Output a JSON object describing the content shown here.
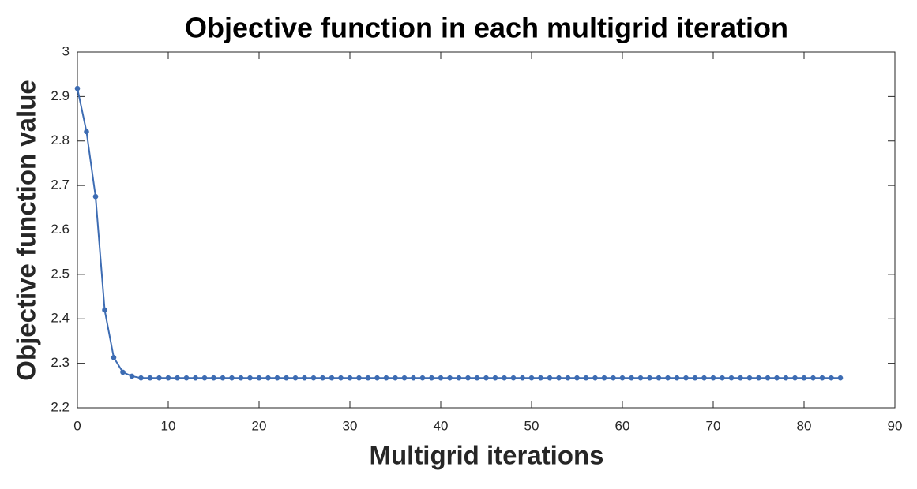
{
  "chart_data": {
    "type": "line",
    "title": "Objective function in each multigrid iteration",
    "xlabel": "Multigrid iterations",
    "ylabel": "Objective function value",
    "x": [
      0,
      1,
      2,
      3,
      4,
      5,
      6,
      7,
      8,
      9,
      10,
      11,
      12,
      13,
      14,
      15,
      16,
      17,
      18,
      19,
      20,
      21,
      22,
      23,
      24,
      25,
      26,
      27,
      28,
      29,
      30,
      31,
      32,
      33,
      34,
      35,
      36,
      37,
      38,
      39,
      40,
      41,
      42,
      43,
      44,
      45,
      46,
      47,
      48,
      49,
      50,
      51,
      52,
      53,
      54,
      55,
      56,
      57,
      58,
      59,
      60,
      61,
      62,
      63,
      64,
      65,
      66,
      67,
      68,
      69,
      70,
      71,
      72,
      73,
      74,
      75,
      76,
      77,
      78,
      79,
      80,
      81,
      82,
      83,
      84
    ],
    "values": [
      2.918,
      2.821,
      2.675,
      2.42,
      2.313,
      2.28,
      2.271,
      2.267,
      2.267,
      2.267,
      2.267,
      2.267,
      2.267,
      2.267,
      2.267,
      2.267,
      2.267,
      2.267,
      2.267,
      2.267,
      2.267,
      2.267,
      2.267,
      2.267,
      2.267,
      2.267,
      2.267,
      2.267,
      2.267,
      2.267,
      2.267,
      2.267,
      2.267,
      2.267,
      2.267,
      2.267,
      2.267,
      2.267,
      2.267,
      2.267,
      2.267,
      2.267,
      2.267,
      2.267,
      2.267,
      2.267,
      2.267,
      2.267,
      2.267,
      2.267,
      2.267,
      2.267,
      2.267,
      2.267,
      2.267,
      2.267,
      2.267,
      2.267,
      2.267,
      2.267,
      2.267,
      2.267,
      2.267,
      2.267,
      2.267,
      2.267,
      2.267,
      2.267,
      2.267,
      2.267,
      2.267,
      2.267,
      2.267,
      2.267,
      2.267,
      2.267,
      2.267,
      2.267,
      2.267,
      2.267,
      2.267,
      2.267,
      2.267,
      2.267,
      2.267
    ],
    "color": "#3d6cb3",
    "xlim": [
      0,
      90
    ],
    "xticks": [
      0,
      10,
      20,
      30,
      40,
      50,
      60,
      70,
      80,
      90
    ],
    "ylim": [
      2.2,
      3
    ],
    "yticks": [
      2.2,
      2.3,
      2.4,
      2.5,
      2.6,
      2.7,
      2.8,
      2.9,
      3
    ],
    "grid": false
  }
}
